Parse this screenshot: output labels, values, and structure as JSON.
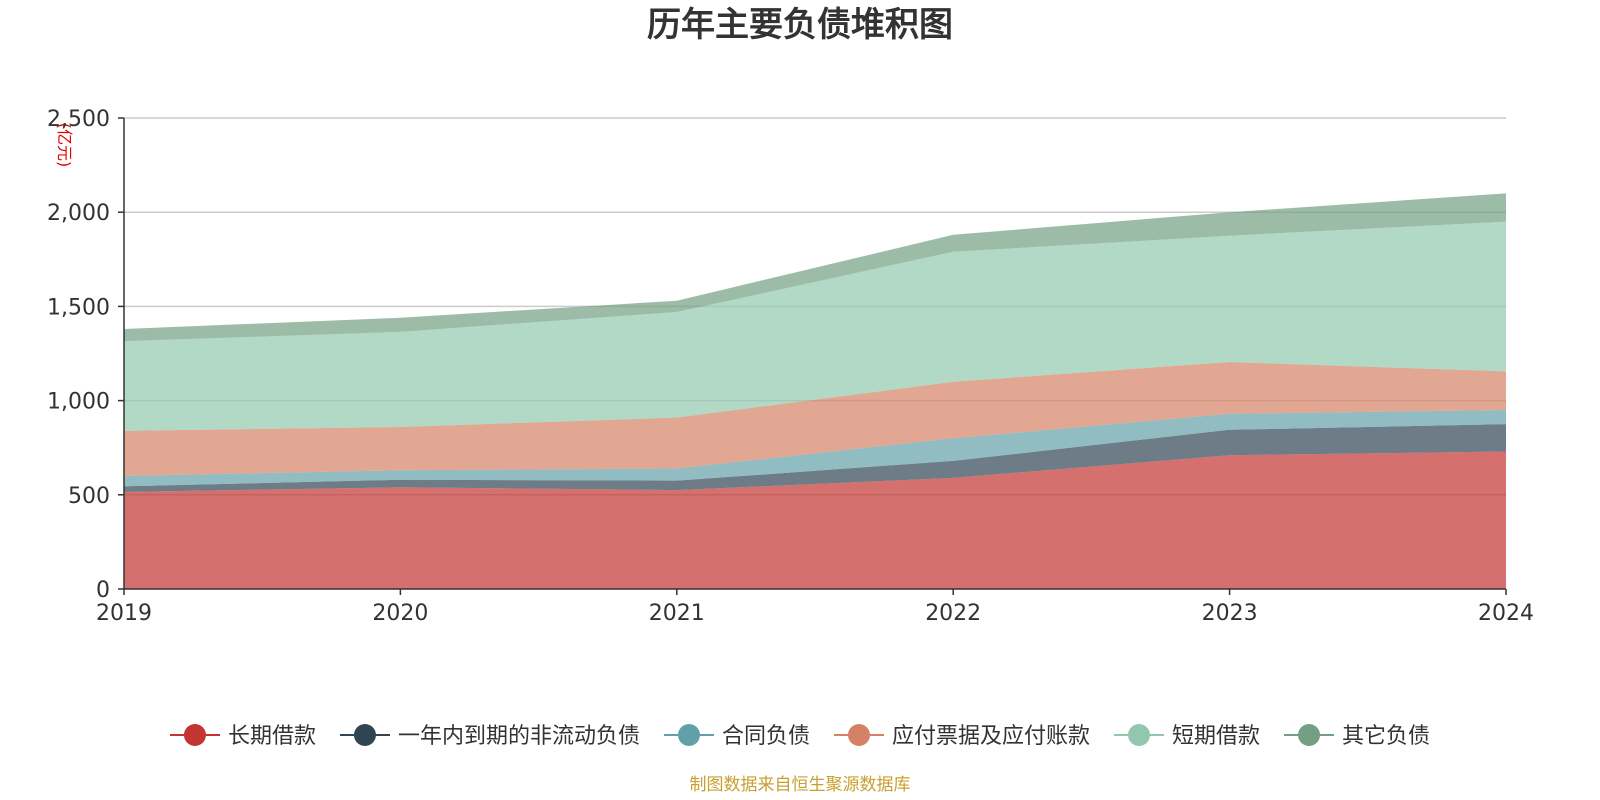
{
  "chart_data": {
    "type": "area",
    "stacked": true,
    "title": "历年主要负债堆积图",
    "unit_label": "(亿元)",
    "categories": [
      "2019",
      "2020",
      "2021",
      "2022",
      "2023",
      "2024"
    ],
    "ylim": [
      0,
      2500
    ],
    "yticks": [
      0,
      500,
      1000,
      1500,
      2000,
      2500
    ],
    "ytick_labels": [
      "0",
      "500",
      "1,000",
      "1,500",
      "2,000",
      "2,500"
    ],
    "grid": true,
    "legend_position": "bottom",
    "series": [
      {
        "name": "长期借款",
        "color": "#c23531",
        "values": [
          515,
          540,
          525,
          590,
          710,
          730
        ]
      },
      {
        "name": "一年内到期的非流动负债",
        "color": "#2f4554",
        "values": [
          30,
          40,
          50,
          90,
          135,
          145
        ]
      },
      {
        "name": "合同负债",
        "color": "#61a0a8",
        "values": [
          55,
          50,
          65,
          120,
          85,
          75
        ]
      },
      {
        "name": "应付票据及应付账款",
        "color": "#d48265",
        "values": [
          240,
          230,
          270,
          300,
          275,
          205
        ]
      },
      {
        "name": "短期借款",
        "color": "#91c7ae",
        "values": [
          475,
          505,
          560,
          690,
          670,
          795
        ]
      },
      {
        "name": "其它负债",
        "color": "#749f83",
        "values": [
          65,
          75,
          60,
          90,
          125,
          150
        ]
      }
    ],
    "source_note": "制图数据来自恒生聚源数据库"
  }
}
